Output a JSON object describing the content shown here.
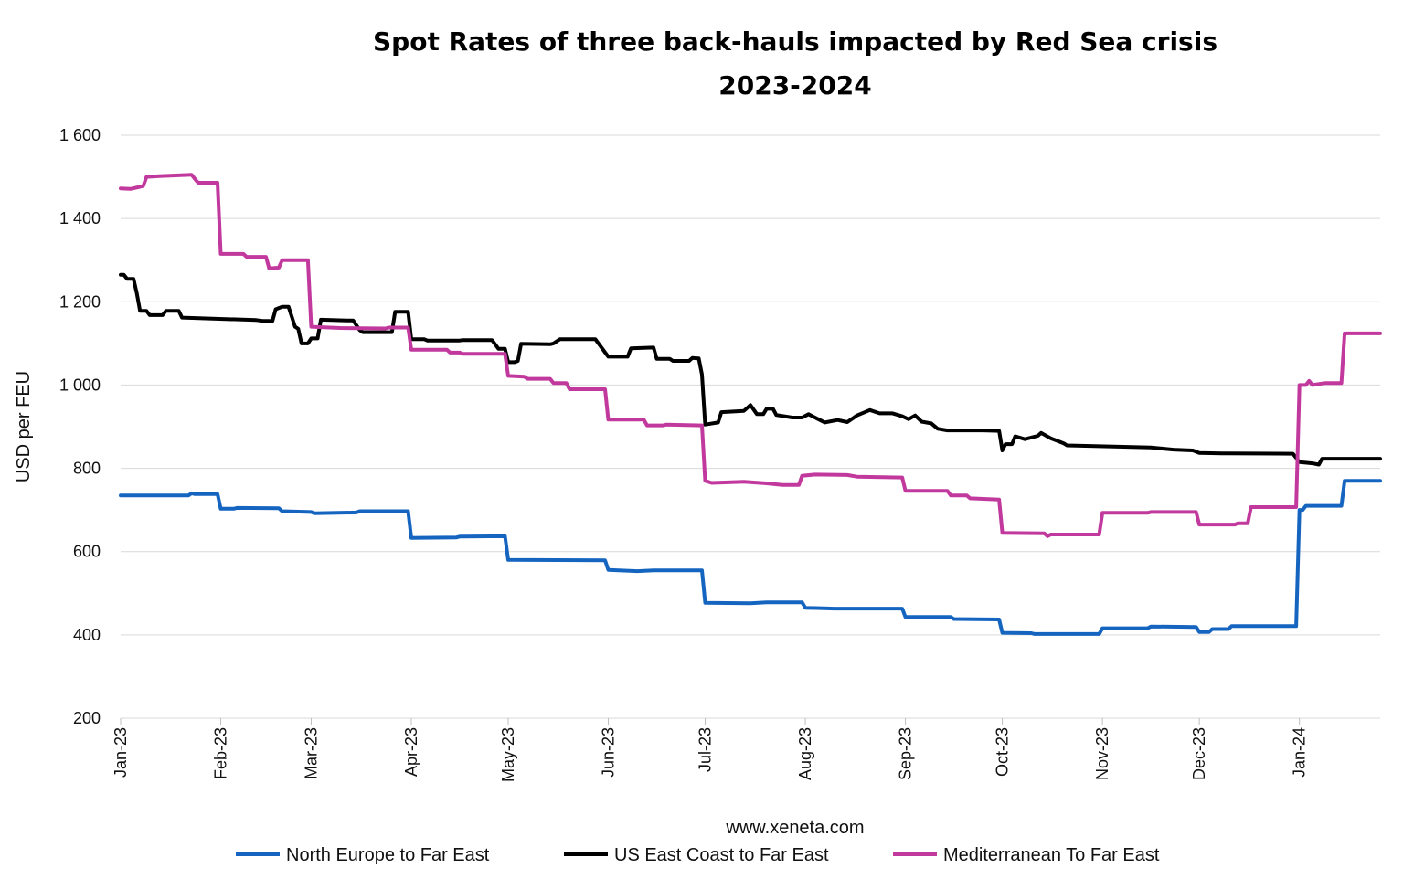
{
  "chart_data": {
    "type": "line",
    "title": "Spot Rates of three back-hauls impacted by Red Sea crisis",
    "subtitle": "2023-2024",
    "xlabel": "www.xeneta.com",
    "ylabel": "USD per FEU",
    "ylim": [
      200,
      1600
    ],
    "yticks": [
      "200",
      "400",
      "600",
      "800",
      "1 000",
      "1 200",
      "1 400",
      "1 600"
    ],
    "xticks": [
      "Jan-23",
      "Feb-23",
      "Mar-23",
      "Apr-23",
      "May-23",
      "Jun-23",
      "Jul-23",
      "Aug-23",
      "Sep-23",
      "Oct-23",
      "Nov-23",
      "Dec-23",
      "Jan-24"
    ],
    "xlim": [
      "2023-01-01",
      "2024-01-26"
    ],
    "grid": "horizontal",
    "legend": "bottom",
    "series": [
      {
        "name": "North Europe to Far East",
        "color": "#1565c0",
        "points": [
          [
            "2023-01-01",
            735
          ],
          [
            "2023-01-22",
            735
          ],
          [
            "2023-01-23",
            740
          ],
          [
            "2023-01-24",
            738
          ],
          [
            "2023-01-31",
            738
          ],
          [
            "2023-02-01",
            703
          ],
          [
            "2023-02-05",
            703
          ],
          [
            "2023-02-06",
            705
          ],
          [
            "2023-02-19",
            704
          ],
          [
            "2023-02-20",
            697
          ],
          [
            "2023-03-01",
            695
          ],
          [
            "2023-03-02",
            692
          ],
          [
            "2023-03-15",
            694
          ],
          [
            "2023-03-16",
            697
          ],
          [
            "2023-03-31",
            697
          ],
          [
            "2023-04-01",
            633
          ],
          [
            "2023-04-15",
            634
          ],
          [
            "2023-04-16",
            636
          ],
          [
            "2023-04-30",
            637
          ],
          [
            "2023-05-01",
            580
          ],
          [
            "2023-05-31",
            579
          ],
          [
            "2023-06-01",
            556
          ],
          [
            "2023-06-10",
            553
          ],
          [
            "2023-06-15",
            555
          ],
          [
            "2023-06-30",
            555
          ],
          [
            "2023-07-01",
            477
          ],
          [
            "2023-07-15",
            476
          ],
          [
            "2023-07-20",
            478
          ],
          [
            "2023-07-31",
            478
          ],
          [
            "2023-08-01",
            465
          ],
          [
            "2023-08-10",
            463
          ],
          [
            "2023-08-31",
            463
          ],
          [
            "2023-09-01",
            443
          ],
          [
            "2023-09-15",
            443
          ],
          [
            "2023-09-16",
            438
          ],
          [
            "2023-09-30",
            437
          ],
          [
            "2023-10-01",
            405
          ],
          [
            "2023-10-10",
            404
          ],
          [
            "2023-10-11",
            402
          ],
          [
            "2023-10-31",
            402
          ],
          [
            "2023-11-01",
            416
          ],
          [
            "2023-11-15",
            416
          ],
          [
            "2023-11-16",
            420
          ],
          [
            "2023-11-30",
            419
          ],
          [
            "2023-12-01",
            407
          ],
          [
            "2023-12-04",
            407
          ],
          [
            "2023-12-05",
            414
          ],
          [
            "2023-12-10",
            414
          ],
          [
            "2023-12-11",
            421
          ],
          [
            "2023-12-31",
            421
          ],
          [
            "2024-01-01",
            700
          ],
          [
            "2024-01-02",
            700
          ],
          [
            "2024-01-03",
            710
          ],
          [
            "2024-01-14",
            710
          ],
          [
            "2024-01-15",
            770
          ],
          [
            "2024-01-26",
            770
          ]
        ]
      },
      {
        "name": "US East Coast to Far East",
        "color": "#000000",
        "points": [
          [
            "2023-01-01",
            1265
          ],
          [
            "2023-01-02",
            1265
          ],
          [
            "2023-01-03",
            1255
          ],
          [
            "2023-01-05",
            1255
          ],
          [
            "2023-01-06",
            1220
          ],
          [
            "2023-01-07",
            1178
          ],
          [
            "2023-01-09",
            1178
          ],
          [
            "2023-01-10",
            1168
          ],
          [
            "2023-01-14",
            1168
          ],
          [
            "2023-01-15",
            1178
          ],
          [
            "2023-01-19",
            1178
          ],
          [
            "2023-01-20",
            1162
          ],
          [
            "2023-02-12",
            1156
          ],
          [
            "2023-02-14",
            1154
          ],
          [
            "2023-02-17",
            1154
          ],
          [
            "2023-02-18",
            1182
          ],
          [
            "2023-02-20",
            1188
          ],
          [
            "2023-02-22",
            1188
          ],
          [
            "2023-02-24",
            1140
          ],
          [
            "2023-02-25",
            1135
          ],
          [
            "2023-02-26",
            1100
          ],
          [
            "2023-02-28",
            1100
          ],
          [
            "2023-03-01",
            1112
          ],
          [
            "2023-03-03",
            1112
          ],
          [
            "2023-03-04",
            1157
          ],
          [
            "2023-03-12",
            1155
          ],
          [
            "2023-03-14",
            1155
          ],
          [
            "2023-03-16",
            1132
          ],
          [
            "2023-03-17",
            1127
          ],
          [
            "2023-03-26",
            1127
          ],
          [
            "2023-03-27",
            1176
          ],
          [
            "2023-03-31",
            1176
          ],
          [
            "2023-04-01",
            1110
          ],
          [
            "2023-04-05",
            1110
          ],
          [
            "2023-04-06",
            1107
          ],
          [
            "2023-04-16",
            1107
          ],
          [
            "2023-04-17",
            1108
          ],
          [
            "2023-04-26",
            1108
          ],
          [
            "2023-04-28",
            1087
          ],
          [
            "2023-04-30",
            1087
          ],
          [
            "2023-05-01",
            1055
          ],
          [
            "2023-05-03",
            1055
          ],
          [
            "2023-05-04",
            1058
          ],
          [
            "2023-05-05",
            1099
          ],
          [
            "2023-05-14",
            1098
          ],
          [
            "2023-05-15",
            1100
          ],
          [
            "2023-05-17",
            1110
          ],
          [
            "2023-05-28",
            1110
          ],
          [
            "2023-06-01",
            1068
          ],
          [
            "2023-06-07",
            1068
          ],
          [
            "2023-06-08",
            1088
          ],
          [
            "2023-06-15",
            1090
          ],
          [
            "2023-06-16",
            1063
          ],
          [
            "2023-06-20",
            1063
          ],
          [
            "2023-06-21",
            1058
          ],
          [
            "2023-06-26",
            1058
          ],
          [
            "2023-06-27",
            1065
          ],
          [
            "2023-06-29",
            1064
          ],
          [
            "2023-06-30",
            1025
          ],
          [
            "2023-07-01",
            905
          ],
          [
            "2023-07-05",
            910
          ],
          [
            "2023-07-06",
            935
          ],
          [
            "2023-07-13",
            938
          ],
          [
            "2023-07-15",
            952
          ],
          [
            "2023-07-17",
            930
          ],
          [
            "2023-07-19",
            930
          ],
          [
            "2023-07-20",
            943
          ],
          [
            "2023-07-22",
            943
          ],
          [
            "2023-07-23",
            928
          ],
          [
            "2023-07-28",
            922
          ],
          [
            "2023-07-31",
            922
          ],
          [
            "2023-08-02",
            930
          ],
          [
            "2023-08-05",
            918
          ],
          [
            "2023-08-07",
            910
          ],
          [
            "2023-08-11",
            916
          ],
          [
            "2023-08-14",
            911
          ],
          [
            "2023-08-17",
            927
          ],
          [
            "2023-08-21",
            940
          ],
          [
            "2023-08-24",
            932
          ],
          [
            "2023-08-28",
            932
          ],
          [
            "2023-08-31",
            925
          ],
          [
            "2023-09-02",
            918
          ],
          [
            "2023-09-04",
            927
          ],
          [
            "2023-09-06",
            912
          ],
          [
            "2023-09-09",
            908
          ],
          [
            "2023-09-11",
            895
          ],
          [
            "2023-09-14",
            891
          ],
          [
            "2023-09-25",
            891
          ],
          [
            "2023-09-30",
            890
          ],
          [
            "2023-10-01",
            843
          ],
          [
            "2023-10-02",
            858
          ],
          [
            "2023-10-04",
            858
          ],
          [
            "2023-10-05",
            877
          ],
          [
            "2023-10-08",
            870
          ],
          [
            "2023-10-12",
            878
          ],
          [
            "2023-10-13",
            885
          ],
          [
            "2023-10-16",
            872
          ],
          [
            "2023-10-18",
            866
          ],
          [
            "2023-10-20",
            860
          ],
          [
            "2023-10-21",
            855
          ],
          [
            "2023-11-06",
            852
          ],
          [
            "2023-11-16",
            850
          ],
          [
            "2023-11-23",
            845
          ],
          [
            "2023-11-29",
            843
          ],
          [
            "2023-12-01",
            837
          ],
          [
            "2023-12-08",
            836
          ],
          [
            "2023-12-10",
            836
          ],
          [
            "2023-12-30",
            835
          ],
          [
            "2024-01-01",
            815
          ],
          [
            "2024-01-05",
            812
          ],
          [
            "2024-01-07",
            809
          ],
          [
            "2024-01-08",
            823
          ],
          [
            "2024-01-26",
            823
          ]
        ]
      },
      {
        "name": "Mediterranean To Far East",
        "color": "#c2399e",
        "points": [
          [
            "2023-01-01",
            1472
          ],
          [
            "2023-01-04",
            1471
          ],
          [
            "2023-01-07",
            1476
          ],
          [
            "2023-01-08",
            1478
          ],
          [
            "2023-01-09",
            1500
          ],
          [
            "2023-01-13",
            1502
          ],
          [
            "2023-01-23",
            1505
          ],
          [
            "2023-01-24",
            1495
          ],
          [
            "2023-01-25",
            1486
          ],
          [
            "2023-01-31",
            1486
          ],
          [
            "2023-02-01",
            1315
          ],
          [
            "2023-02-08",
            1315
          ],
          [
            "2023-02-09",
            1308
          ],
          [
            "2023-02-15",
            1308
          ],
          [
            "2023-02-16",
            1280
          ],
          [
            "2023-02-19",
            1282
          ],
          [
            "2023-02-20",
            1300
          ],
          [
            "2023-02-28",
            1300
          ],
          [
            "2023-03-01",
            1140
          ],
          [
            "2023-03-10",
            1137
          ],
          [
            "2023-03-24",
            1136
          ],
          [
            "2023-03-25",
            1138
          ],
          [
            "2023-03-31",
            1138
          ],
          [
            "2023-04-01",
            1085
          ],
          [
            "2023-04-12",
            1085
          ],
          [
            "2023-04-13",
            1078
          ],
          [
            "2023-04-16",
            1078
          ],
          [
            "2023-04-17",
            1075
          ],
          [
            "2023-04-30",
            1075
          ],
          [
            "2023-05-01",
            1022
          ],
          [
            "2023-05-06",
            1020
          ],
          [
            "2023-05-07",
            1015
          ],
          [
            "2023-05-14",
            1015
          ],
          [
            "2023-05-15",
            1005
          ],
          [
            "2023-05-19",
            1005
          ],
          [
            "2023-05-20",
            990
          ],
          [
            "2023-05-31",
            990
          ],
          [
            "2023-06-01",
            917
          ],
          [
            "2023-06-12",
            917
          ],
          [
            "2023-06-13",
            903
          ],
          [
            "2023-06-18",
            903
          ],
          [
            "2023-06-19",
            905
          ],
          [
            "2023-06-30",
            903
          ],
          [
            "2023-07-01",
            770
          ],
          [
            "2023-07-03",
            765
          ],
          [
            "2023-07-13",
            768
          ],
          [
            "2023-07-20",
            764
          ],
          [
            "2023-07-25",
            760
          ],
          [
            "2023-07-30",
            760
          ],
          [
            "2023-07-31",
            782
          ],
          [
            "2023-08-04",
            785
          ],
          [
            "2023-08-14",
            784
          ],
          [
            "2023-08-17",
            780
          ],
          [
            "2023-08-31",
            778
          ],
          [
            "2023-09-01",
            746
          ],
          [
            "2023-09-14",
            746
          ],
          [
            "2023-09-15",
            735
          ],
          [
            "2023-09-20",
            735
          ],
          [
            "2023-09-21",
            728
          ],
          [
            "2023-09-30",
            725
          ],
          [
            "2023-10-01",
            645
          ],
          [
            "2023-10-14",
            644
          ],
          [
            "2023-10-15",
            637
          ],
          [
            "2023-10-16",
            641
          ],
          [
            "2023-10-31",
            641
          ],
          [
            "2023-11-01",
            693
          ],
          [
            "2023-11-15",
            693
          ],
          [
            "2023-11-16",
            695
          ],
          [
            "2023-11-30",
            695
          ],
          [
            "2023-12-01",
            665
          ],
          [
            "2023-12-12",
            665
          ],
          [
            "2023-12-13",
            668
          ],
          [
            "2023-12-16",
            668
          ],
          [
            "2023-12-17",
            707
          ],
          [
            "2023-12-31",
            707
          ],
          [
            "2024-01-01",
            1000
          ],
          [
            "2024-01-03",
            1000
          ],
          [
            "2024-01-04",
            1010
          ],
          [
            "2024-01-05",
            1000
          ],
          [
            "2024-01-09",
            1005
          ],
          [
            "2024-01-14",
            1005
          ],
          [
            "2024-01-15",
            1124
          ],
          [
            "2024-01-26",
            1124
          ]
        ]
      }
    ]
  }
}
